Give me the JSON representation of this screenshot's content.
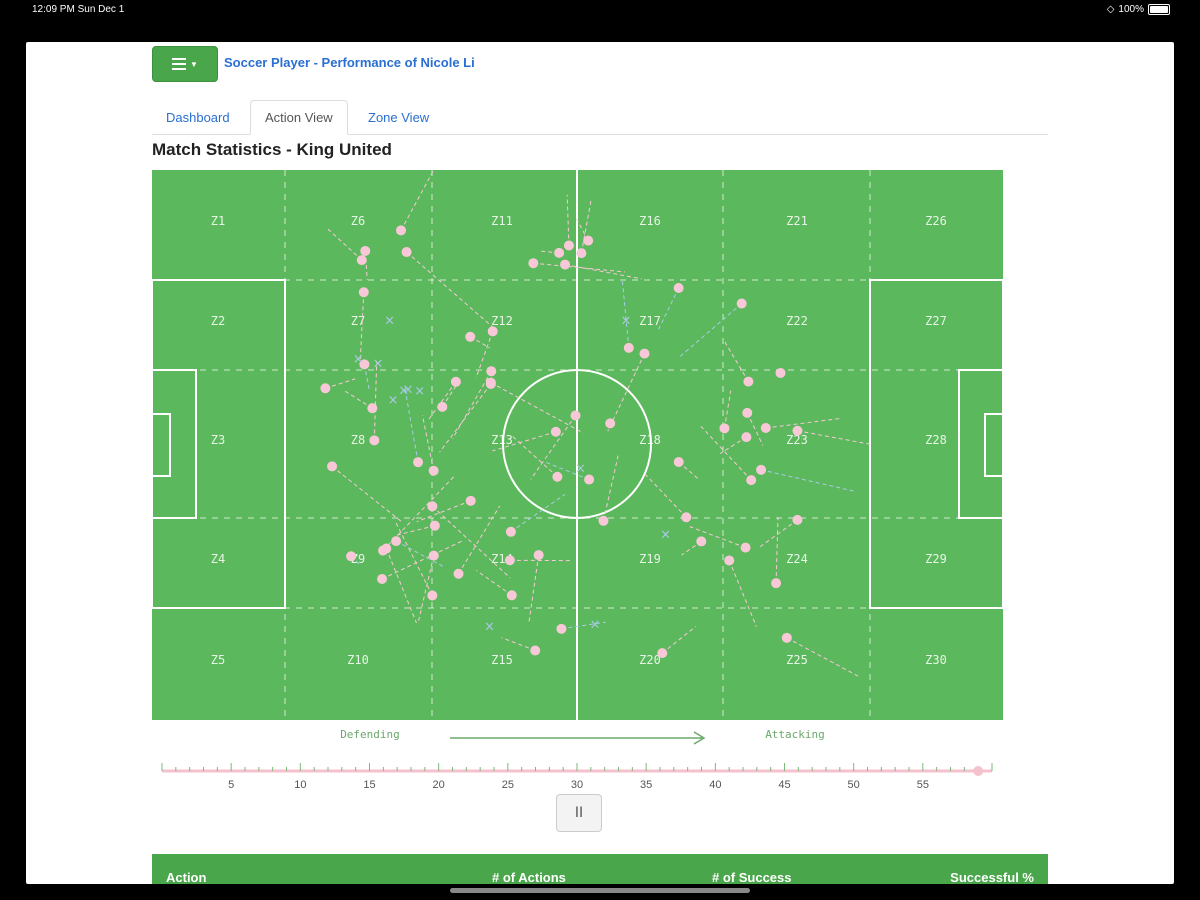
{
  "status": {
    "time": "12:09 PM  Sun Dec 1",
    "battery": "100%"
  },
  "app": {
    "title": "Soccer Player - Performance of Nicole Li",
    "menu_icon": "hamburger-icon"
  },
  "tabs": [
    {
      "label": "Dashboard",
      "active": false
    },
    {
      "label": "Action View",
      "active": true
    },
    {
      "label": "Zone View",
      "active": false
    }
  ],
  "match": {
    "title": "Match Statistics - King United"
  },
  "pitch": {
    "zones": [
      [
        "Z1",
        "Z2",
        "Z3",
        "Z4",
        "Z5"
      ],
      [
        "Z6",
        "Z7",
        "Z8",
        "Z9",
        "Z10"
      ],
      [
        "Z11",
        "Z12",
        "Z13",
        "Z14",
        "Z15"
      ],
      [
        "Z16",
        "Z17",
        "Z18",
        "Z19",
        "Z20"
      ],
      [
        "Z21",
        "Z22",
        "Z23",
        "Z24",
        "Z25"
      ],
      [
        "Z26",
        "Z27",
        "Z28",
        "Z29",
        "Z30"
      ]
    ],
    "defending_label": "Defending",
    "attacking_label": "Attacking",
    "colors": {
      "grass": "#5cb85c",
      "lines": "#ffffff",
      "success_marker": "#f8c8d8",
      "fail_marker": "#a9cbe8"
    }
  },
  "timeline": {
    "ticks": [
      "5",
      "10",
      "15",
      "20",
      "25",
      "30",
      "35",
      "40",
      "45",
      "50",
      "55"
    ],
    "current_minute": 59,
    "max_minute": 60
  },
  "controls": {
    "pause_label": "II"
  },
  "stats_table": {
    "headers": [
      "Action",
      "# of Actions",
      "# of Success",
      "Successful %"
    ]
  }
}
